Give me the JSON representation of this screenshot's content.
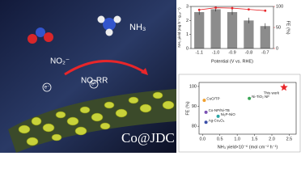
{
  "illustration": {
    "labels": [
      "NO₂⁻",
      "NO₂RR",
      "NH₃",
      "e⁻",
      "e⁻",
      "Co@JDC"
    ]
  },
  "chart_data": [
    {
      "type": "bar",
      "x_label": "Potential (V vs. RHE)",
      "y_label": "NH₃ yield (mg h⁻¹ g꜀ₐₜ⁻¹)",
      "y2_label": "FE (%)",
      "categories": [
        "-1.1",
        "-1.0",
        "-0.9",
        "-0.8",
        "-0.7"
      ],
      "series": [
        {
          "type": "bar",
          "color": "#8c8c8c",
          "values": [
            2.6,
            2.8,
            2.6,
            2.0,
            1.6
          ],
          "errors": [
            0.2,
            0.15,
            0.2,
            0.2,
            0.2
          ]
        },
        {
          "type": "line",
          "axis": "y2",
          "color": "#e8262a",
          "values": [
            92,
            97,
            96,
            93,
            90
          ]
        }
      ],
      "ylim": [
        0,
        3
      ],
      "yticks": [
        0,
        1,
        2,
        3
      ],
      "y2lim": [
        0,
        100
      ],
      "y2ticks": [
        0,
        50,
        100
      ]
    },
    {
      "type": "scatter",
      "x_label": "NH₃ yield×10⁻⁶ (mol cm⁻² h⁻¹)",
      "y_label": "FE (%)",
      "xlim": [
        -0.1,
        2.7
      ],
      "ylim": [
        76,
        102
      ],
      "xticks": [
        {
          "value": 0,
          "label": "0.0"
        },
        0.5,
        {
          "value": 1,
          "label": "1.0"
        },
        1.5,
        {
          "value": 2,
          "label": "2.0"
        },
        2.5
      ],
      "yticks": [
        80,
        90,
        100
      ],
      "series": [
        {
          "name": "This work",
          "color": "#e8262a",
          "marker": "star",
          "x": [
            2.35
          ],
          "values": [
            99.5
          ]
        },
        {
          "name": "Ni-TiO₂ NF",
          "color": "#3aa655",
          "marker": "circle",
          "x": [
            1.35
          ],
          "values": [
            94
          ]
        },
        {
          "name": "CuO/TP",
          "color": "#f0a030",
          "marker": "circle",
          "x": [
            0.05
          ],
          "values": [
            93
          ]
        },
        {
          "name": "Co-NP/Ni-TB",
          "color": "#7a52b3",
          "marker": "circle",
          "x": [
            0.1
          ],
          "values": [
            87
          ]
        },
        {
          "name": "Ni₂P-NiO",
          "color": "#2aa6a6",
          "marker": "circle",
          "x": [
            0.45
          ],
          "values": [
            85
          ]
        },
        {
          "name": "Ag-Co₃O₄",
          "color": "#3b4fa8",
          "marker": "circle",
          "x": [
            0.1
          ],
          "values": [
            82
          ]
        }
      ]
    }
  ]
}
